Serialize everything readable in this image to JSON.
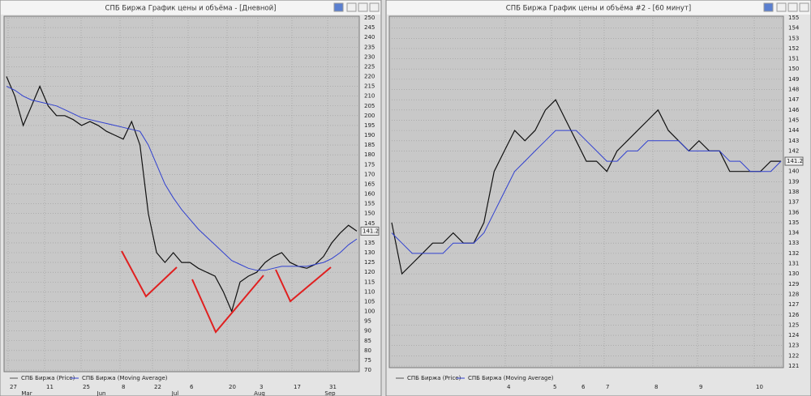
{
  "windows": [
    {
      "title": "СПБ Биржа График цены и объёма - [Дневной]",
      "yticks": [
        250,
        245,
        240,
        235,
        230,
        225,
        220,
        215,
        210,
        205,
        200,
        195,
        190,
        185,
        180,
        175,
        170,
        165,
        160,
        155,
        150,
        145,
        140,
        135,
        130,
        125,
        120,
        115,
        110,
        105,
        100,
        95,
        90,
        85,
        80,
        75,
        70
      ],
      "xlabels": [
        "27",
        "11",
        "25",
        "8",
        "22",
        "6",
        "20",
        "3",
        "17",
        "31"
      ],
      "months": [
        "Mar",
        "Jun",
        "Jul",
        "Aug",
        "Sep"
      ],
      "last_price": "141.2",
      "legend": [
        "СПБ Биржа (Price)",
        "СПБ Биржа (Moving Average)"
      ],
      "price": [
        220,
        210,
        195,
        205,
        215,
        205,
        200,
        200,
        198,
        195,
        197,
        195,
        192,
        190,
        188,
        197,
        185,
        150,
        130,
        125,
        130,
        125,
        125,
        122,
        120,
        118,
        110,
        100,
        115,
        118,
        120,
        125,
        128,
        130,
        125,
        123,
        122,
        124,
        128,
        135,
        140,
        144,
        141
      ],
      "moving_average": [
        215,
        213,
        210,
        208,
        207,
        206,
        205,
        203,
        201,
        199,
        198,
        197,
        196,
        195,
        194,
        193,
        192,
        185,
        175,
        165,
        158,
        152,
        147,
        142,
        138,
        134,
        130,
        126,
        124,
        122,
        121,
        121,
        122,
        123,
        123,
        123,
        123,
        124,
        125,
        127,
        130,
        134,
        137
      ]
    },
    {
      "title": "СПБ Биржа График цены и объёма #2 - [60 минут]",
      "yticks": [
        155,
        154,
        153,
        152,
        151,
        150,
        149,
        148,
        147,
        146,
        145,
        144,
        143,
        142,
        141,
        140,
        139,
        138,
        137,
        136,
        135,
        134,
        133,
        132,
        131,
        130,
        129,
        128,
        127,
        126,
        125,
        124,
        123,
        122,
        121
      ],
      "xlabels": [
        "4",
        "5",
        "6",
        "7",
        "8",
        "9",
        "10"
      ],
      "months": [],
      "last_price": "141.2",
      "legend": [
        "СПБ Биржа (Price)",
        "СПБ Биржа (Moving Average)"
      ],
      "price": [
        135,
        130,
        131,
        132,
        133,
        133,
        134,
        133,
        133,
        135,
        140,
        142,
        144,
        143,
        144,
        146,
        147,
        145,
        143,
        141,
        141,
        140,
        142,
        143,
        144,
        145,
        146,
        144,
        143,
        142,
        143,
        142,
        142,
        140,
        140,
        140,
        140,
        141,
        141
      ],
      "moving_average": [
        134,
        133,
        132,
        132,
        132,
        132,
        133,
        133,
        133,
        134,
        136,
        138,
        140,
        141,
        142,
        143,
        144,
        144,
        144,
        143,
        142,
        141,
        141,
        142,
        142,
        143,
        143,
        143,
        143,
        142,
        142,
        142,
        142,
        141,
        141,
        140,
        140,
        140,
        141
      ]
    }
  ]
}
